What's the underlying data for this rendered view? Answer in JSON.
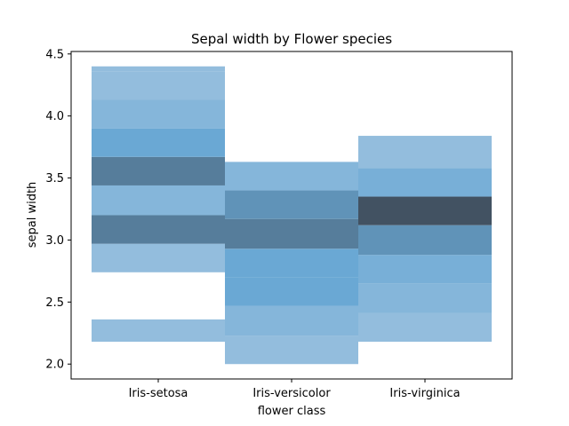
{
  "chart_data": {
    "type": "heatmap",
    "title": "Sepal width by Flower species",
    "xlabel": "flower class",
    "ylabel": "sepal width",
    "categories": [
      "Iris-setosa",
      "Iris-versicolor",
      "Iris-virginica"
    ],
    "ylim": [
      1.88,
      4.52
    ],
    "yticks": [
      2.0,
      2.5,
      3.0,
      3.5,
      4.0,
      4.5
    ],
    "ytick_labels": [
      "2.0",
      "2.5",
      "3.0",
      "3.5",
      "4.0",
      "4.5"
    ],
    "bin_width": 0.2333,
    "grid": false,
    "color_map": "Blues (light to dark by count)",
    "base_color": "#1f77b4",
    "series": [
      {
        "category": "Iris-setosa",
        "bins": [
          {
            "y0": 2.18,
            "y1": 2.36,
            "count": 1
          },
          {
            "y0": 2.74,
            "y1": 2.97,
            "count": 1
          },
          {
            "y0": 2.97,
            "y1": 3.2,
            "count": 6
          },
          {
            "y0": 3.2,
            "y1": 3.44,
            "count": 2
          },
          {
            "y0": 3.44,
            "y1": 3.67,
            "count": 6
          },
          {
            "y0": 3.67,
            "y1": 3.9,
            "count": 4
          },
          {
            "y0": 3.9,
            "y1": 4.13,
            "count": 2
          },
          {
            "y0": 4.13,
            "y1": 4.36,
            "count": 1
          },
          {
            "y0": 4.36,
            "y1": 4.4,
            "count": 1
          }
        ]
      },
      {
        "category": "Iris-versicolor",
        "bins": [
          {
            "y0": 2.0,
            "y1": 2.23,
            "count": 1
          },
          {
            "y0": 2.23,
            "y1": 2.47,
            "count": 2
          },
          {
            "y0": 2.47,
            "y1": 2.7,
            "count": 4
          },
          {
            "y0": 2.7,
            "y1": 2.93,
            "count": 4
          },
          {
            "y0": 2.93,
            "y1": 3.17,
            "count": 6
          },
          {
            "y0": 3.17,
            "y1": 3.4,
            "count": 5
          },
          {
            "y0": 3.4,
            "y1": 3.63,
            "count": 2
          },
          {
            "y0": 3.63,
            "y1": 3.47,
            "count": 0
          }
        ]
      },
      {
        "category": "Iris-virginica",
        "bins": [
          {
            "y0": 2.18,
            "y1": 2.41,
            "count": 1
          },
          {
            "y0": 2.41,
            "y1": 2.65,
            "count": 2
          },
          {
            "y0": 2.65,
            "y1": 2.88,
            "count": 3
          },
          {
            "y0": 2.88,
            "y1": 3.12,
            "count": 5
          },
          {
            "y0": 3.12,
            "y1": 3.35,
            "count": 8
          },
          {
            "y0": 3.35,
            "y1": 3.58,
            "count": 3
          },
          {
            "y0": 3.58,
            "y1": 3.84,
            "count": 1
          }
        ]
      }
    ]
  }
}
